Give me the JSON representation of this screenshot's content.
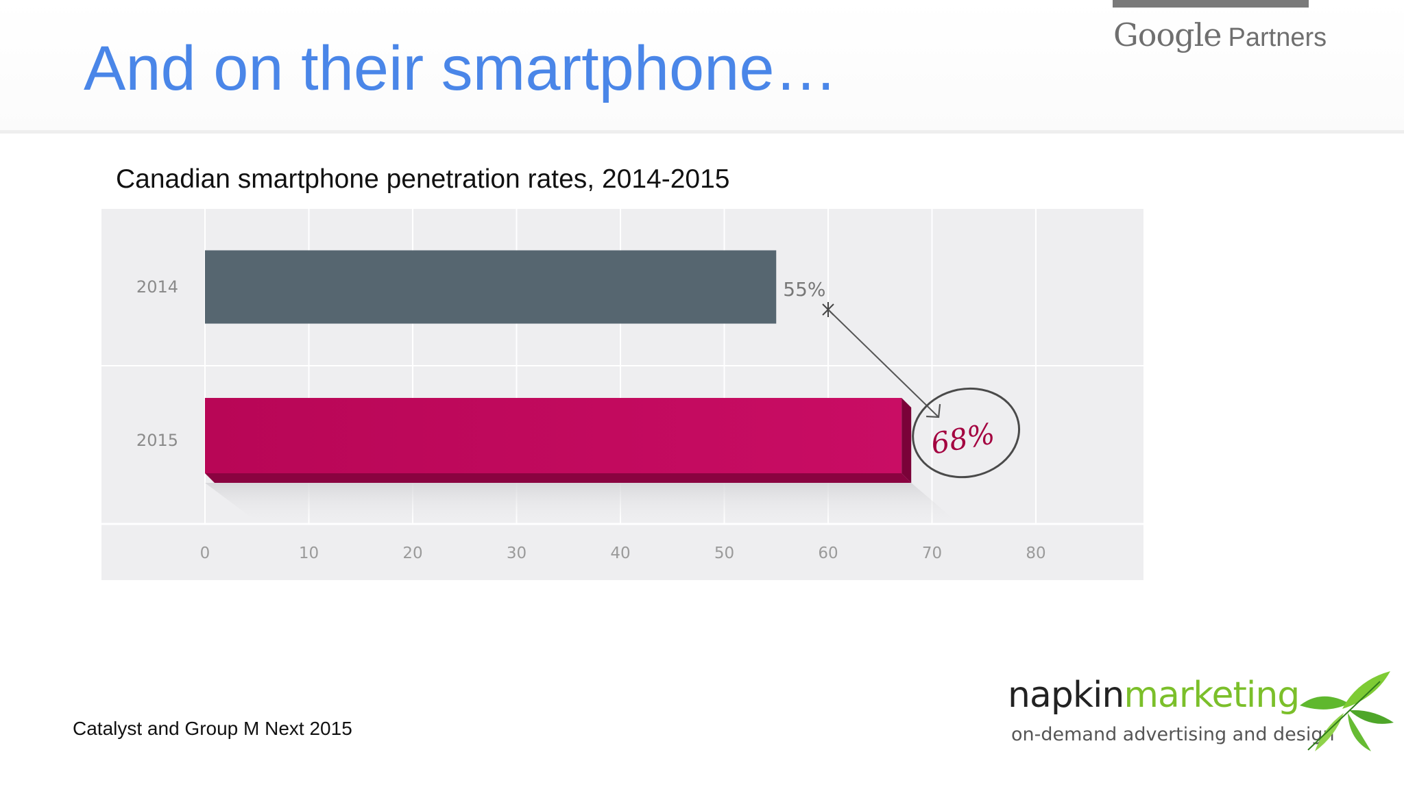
{
  "slide": {
    "title": "And on their smartphone…",
    "source": "Catalyst and Group M Next 2015"
  },
  "logos": {
    "google_word": "Google",
    "partners_word": "Partners",
    "napkin_word_1": "napkin",
    "napkin_word_2": "marketing",
    "napkin_tagline": "on-demand advertising and design"
  },
  "colors": {
    "title": "#4a86e8",
    "bar_2014": "#566670",
    "bar_2015": "#c20a5c",
    "annotation": "#a3003f"
  },
  "chart_data": {
    "type": "bar",
    "orientation": "horizontal",
    "title": "Canadian smartphone penetration rates, 2014-2015",
    "categories": [
      "2014",
      "2015"
    ],
    "values": [
      55,
      68
    ],
    "data_labels": [
      "55%",
      "68%"
    ],
    "xlim": [
      0,
      80
    ],
    "x_ticks": [
      "0",
      "10",
      "20",
      "30",
      "40",
      "50",
      "60",
      "70",
      "80"
    ],
    "grid": true,
    "legend": "none"
  }
}
